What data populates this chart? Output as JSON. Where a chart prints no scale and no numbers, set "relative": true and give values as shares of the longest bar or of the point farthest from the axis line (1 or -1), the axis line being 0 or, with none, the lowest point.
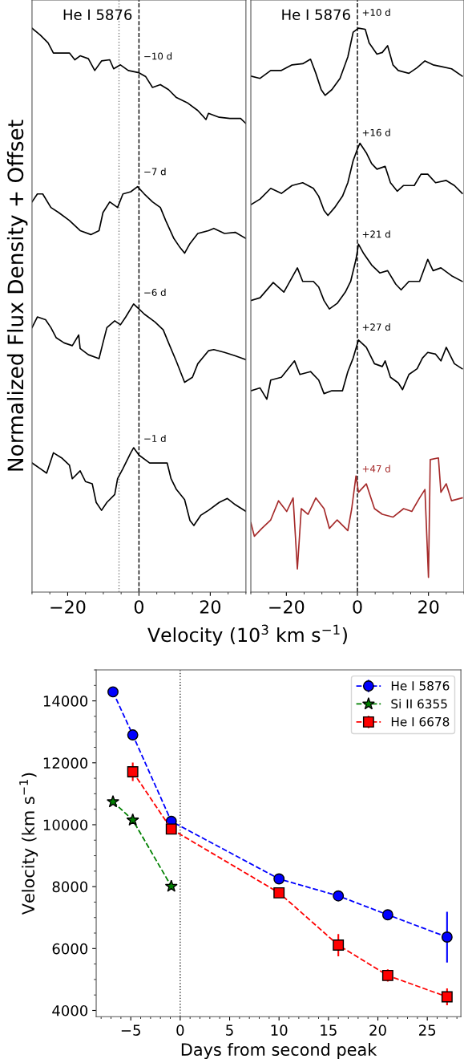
{
  "chart_data": [
    {
      "type": "line",
      "title": "He I 5876",
      "xlabel": "Velocity (10$^{3}$ km s$^{−1}$)",
      "ylabel": "Normalized Flux Density + Offset",
      "relative": true,
      "xlim": [
        -30,
        30
      ],
      "xticks": [
        -20,
        0,
        20
      ],
      "tick_labels": "x",
      "marker": "none",
      "line_style": "solid",
      "series": [
        {
          "name": "−10 d",
          "color": "#000000",
          "x": [
            -30,
            -27.7,
            -25.5,
            -24,
            -21.7,
            -19.5,
            -18,
            -16.5,
            -14.2,
            -12.4,
            -10.5,
            -8.2,
            -7.1,
            -5.2,
            -3,
            0,
            1.9,
            3.8,
            6,
            8.3,
            10.5,
            13.5,
            16.5,
            18.8,
            19.5,
            22.5,
            25.5,
            28.5,
            30
          ],
          "values": [
            1.0,
            0.988,
            0.974,
            0.956,
            0.956,
            0.956,
            0.944,
            0.951,
            0.946,
            0.925,
            0.942,
            0.944,
            0.928,
            0.935,
            0.925,
            0.921,
            0.914,
            0.895,
            0.9,
            0.891,
            0.877,
            0.868,
            0.854,
            0.838,
            0.849,
            0.842,
            0.84,
            0.84,
            0.831
          ]
        },
        {
          "name": "−7 d",
          "color": "#000000",
          "x": [
            -30,
            -28.5,
            -27,
            -24.7,
            -22.5,
            -19.5,
            -16.5,
            -13.5,
            -11.2,
            -10.1,
            -8.2,
            -6,
            -4.5,
            -2.3,
            -0.4,
            1.5,
            3.8,
            6,
            7.5,
            9.8,
            11.3,
            12.8,
            14.3,
            16.5,
            19.5,
            21,
            24,
            27,
            30
          ],
          "values": [
            0.692,
            0.706,
            0.706,
            0.682,
            0.673,
            0.659,
            0.641,
            0.634,
            0.641,
            0.673,
            0.692,
            0.682,
            0.706,
            0.71,
            0.719,
            0.706,
            0.692,
            0.682,
            0.659,
            0.627,
            0.613,
            0.601,
            0.618,
            0.636,
            0.641,
            0.645,
            0.636,
            0.638,
            0.627
          ]
        },
        {
          "name": "−6 d",
          "color": "#000000",
          "x": [
            -30,
            -28.5,
            -26.2,
            -24.7,
            -23.2,
            -21,
            -18.7,
            -16.9,
            -16.5,
            -14.2,
            -11.2,
            -10.1,
            -9,
            -6.8,
            -5.2,
            -3.7,
            -1.5,
            0,
            1.5,
            4.5,
            6.8,
            8.3,
            10.5,
            12.8,
            15,
            16.5,
            19.5,
            21,
            24,
            27,
            30
          ],
          "values": [
            0.469,
            0.488,
            0.483,
            0.469,
            0.451,
            0.442,
            0.437,
            0.456,
            0.432,
            0.421,
            0.414,
            0.442,
            0.469,
            0.481,
            0.474,
            0.488,
            0.511,
            0.502,
            0.493,
            0.479,
            0.465,
            0.442,
            0.409,
            0.372,
            0.381,
            0.405,
            0.428,
            0.43,
            0.425,
            0.419,
            0.412
          ]
        },
        {
          "name": "−1 d",
          "color": "#000000",
          "x": [
            -30,
            -27.7,
            -25.9,
            -24,
            -21.7,
            -19.5,
            -18.7,
            -16.5,
            -15,
            -13.1,
            -12,
            -10.5,
            -9,
            -6.8,
            -6,
            -4.5,
            -2.3,
            -1.5,
            0,
            3,
            6,
            7.9,
            9,
            10.5,
            12.8,
            14.3,
            15.4,
            17.3,
            19.5,
            22.5,
            24.8,
            27,
            30
          ],
          "values": [
            0.229,
            0.219,
            0.211,
            0.247,
            0.238,
            0.225,
            0.201,
            0.215,
            0.196,
            0.192,
            0.159,
            0.145,
            0.159,
            0.173,
            0.201,
            0.219,
            0.247,
            0.256,
            0.243,
            0.229,
            0.229,
            0.229,
            0.201,
            0.182,
            0.164,
            0.127,
            0.118,
            0.136,
            0.145,
            0.159,
            0.166,
            0.155,
            0.143
          ]
        }
      ],
      "ref_lines": [
        {
          "axis": "x",
          "value": 0,
          "line_style": "dashed",
          "color": "#000000"
        },
        {
          "axis": "x",
          "value": -5.6,
          "line_style": "dotted",
          "color": "#808080"
        }
      ]
    },
    {
      "type": "line",
      "title": "He I 5876",
      "relative": true,
      "xlim": [
        -30,
        30
      ],
      "xticks": [
        -20,
        0,
        20
      ],
      "tick_labels": "x",
      "marker": "none",
      "line_style": "solid",
      "series": [
        {
          "name": "+10 d",
          "color": "#000000",
          "x": [
            -30,
            -27.4,
            -24.4,
            -21.4,
            -18.4,
            -15.4,
            -13.2,
            -11.7,
            -10.2,
            -9.1,
            -7.2,
            -4.9,
            -2.7,
            -1.2,
            0.3,
            2.2,
            3.3,
            5.5,
            7,
            8.5,
            10,
            11.5,
            14.5,
            16.8,
            19,
            21.3,
            23.5,
            26.5,
            29.5
          ],
          "values": [
            0.915,
            0.911,
            0.925,
            0.925,
            0.935,
            0.937,
            0.945,
            0.92,
            0.891,
            0.881,
            0.891,
            0.911,
            0.949,
            0.993,
            1.0,
            0.998,
            0.974,
            0.954,
            0.957,
            0.969,
            0.935,
            0.925,
            0.92,
            0.93,
            0.942,
            0.935,
            0.932,
            0.928,
            0.915
          ]
        },
        {
          "name": "+16 d",
          "color": "#000000",
          "x": [
            -30,
            -27.4,
            -24.4,
            -21.4,
            -18.4,
            -15.4,
            -12.4,
            -10.9,
            -9.4,
            -8.3,
            -6.4,
            -4.2,
            -2.7,
            -1.2,
            -0.1,
            0.7,
            2.5,
            4,
            5.5,
            7.8,
            9.3,
            11.2,
            13,
            16,
            17.9,
            19.8,
            22,
            25,
            27.3,
            29.5
          ],
          "values": [
            0.687,
            0.697,
            0.716,
            0.707,
            0.721,
            0.726,
            0.716,
            0.702,
            0.677,
            0.668,
            0.682,
            0.702,
            0.726,
            0.765,
            0.784,
            0.796,
            0.779,
            0.76,
            0.75,
            0.755,
            0.726,
            0.711,
            0.721,
            0.721,
            0.741,
            0.741,
            0.726,
            0.73,
            0.721,
            0.707
          ]
        },
        {
          "name": "+21 d",
          "color": "#000000",
          "x": [
            -30,
            -27.4,
            -23.7,
            -20.7,
            -16.9,
            -15.4,
            -12.4,
            -10.9,
            -9.4,
            -7.9,
            -5.7,
            -3.4,
            -1.9,
            -0.4,
            0.3,
            1.8,
            4,
            6.3,
            8.5,
            10.8,
            12.3,
            14.5,
            17.5,
            19.8,
            21.3,
            23.5,
            26.5,
            29.5
          ],
          "values": [
            0.517,
            0.522,
            0.549,
            0.532,
            0.575,
            0.551,
            0.551,
            0.541,
            0.517,
            0.502,
            0.512,
            0.532,
            0.551,
            0.59,
            0.617,
            0.6,
            0.58,
            0.566,
            0.57,
            0.546,
            0.536,
            0.551,
            0.551,
            0.59,
            0.57,
            0.575,
            0.561,
            0.551
          ]
        },
        {
          "name": "+27 d",
          "color": "#000000",
          "x": [
            -30,
            -27.4,
            -25.5,
            -24.4,
            -21.4,
            -17.7,
            -16.2,
            -13.2,
            -10.9,
            -9.4,
            -7.2,
            -4.2,
            -2.7,
            -1.2,
            0.3,
            2.5,
            4.8,
            7,
            7.8,
            9.3,
            11.5,
            12.7,
            14.5,
            16.8,
            18.3,
            19.8,
            22,
            23.5,
            25,
            27.3,
            29.5
          ],
          "values": [
            0.357,
            0.362,
            0.342,
            0.376,
            0.381,
            0.41,
            0.386,
            0.391,
            0.376,
            0.352,
            0.357,
            0.357,
            0.391,
            0.415,
            0.447,
            0.434,
            0.405,
            0.4,
            0.41,
            0.381,
            0.371,
            0.359,
            0.386,
            0.396,
            0.415,
            0.425,
            0.422,
            0.41,
            0.434,
            0.405,
            0.396
          ]
        },
        {
          "name": "+47 d",
          "color": "#a52a2a",
          "x": [
            -30,
            -29,
            -26.9,
            -24.4,
            -22.2,
            -19.9,
            -18.1,
            -16.9,
            -15.8,
            -13.9,
            -11.7,
            -9.4,
            -7.9,
            -5.7,
            -2.7,
            -1.6,
            -0.4,
            0.3,
            2.5,
            4.8,
            7,
            10,
            13,
            15.3,
            17.5,
            19,
            20,
            20.5,
            22.8,
            23.5,
            25,
            26.5,
            29.5
          ],
          "values": [
            0.123,
            0.099,
            0.113,
            0.128,
            0.162,
            0.143,
            0.167,
            0.041,
            0.148,
            0.138,
            0.167,
            0.148,
            0.113,
            0.128,
            0.109,
            0.148,
            0.206,
            0.177,
            0.192,
            0.148,
            0.138,
            0.133,
            0.148,
            0.143,
            0.167,
            0.182,
            0.026,
            0.235,
            0.238,
            0.177,
            0.192,
            0.162,
            0.167
          ]
        }
      ],
      "ref_lines": [
        {
          "axis": "x",
          "value": 0,
          "line_style": "dashed",
          "color": "#000000"
        }
      ]
    },
    {
      "type": "line",
      "xlabel": "Days from second peak",
      "ylabel": "Velocity (km s$^{−1}$)",
      "xlim": [
        -8.5,
        28.4
      ],
      "ylim": [
        3800,
        15000
      ],
      "xticks": [
        -5,
        0,
        5,
        10,
        15,
        20,
        25
      ],
      "yticks": [
        4000,
        6000,
        8000,
        10000,
        12000,
        14000
      ],
      "grid": false,
      "legend": "top right",
      "line_style": "dashed",
      "series": [
        {
          "name": "He I 5876",
          "color": "#0000ff",
          "marker": "circle",
          "x": [
            -6.8,
            -4.8,
            -0.9,
            10,
            16,
            21,
            27
          ],
          "values": [
            14290,
            12900,
            10110,
            8250,
            7700,
            7090,
            6370
          ],
          "errors": [
            null,
            null,
            null,
            null,
            150,
            null,
            820
          ]
        },
        {
          "name": "Si II 6355",
          "color": "#008000",
          "marker": "star",
          "x": [
            -6.8,
            -4.8,
            -0.9
          ],
          "values": [
            10740,
            10150,
            8010
          ]
        },
        {
          "name": "He I 6678",
          "color": "#ff0000",
          "marker": "square",
          "x": [
            -4.8,
            -0.9,
            10,
            16,
            21,
            27
          ],
          "values": [
            11710,
            9860,
            7800,
            6110,
            5130,
            4440
          ],
          "errors": [
            300,
            150,
            100,
            360,
            200,
            270
          ]
        }
      ],
      "ref_lines": [
        {
          "axis": "x",
          "value": 0,
          "line_style": "dotted",
          "color": "#333333"
        }
      ]
    }
  ]
}
